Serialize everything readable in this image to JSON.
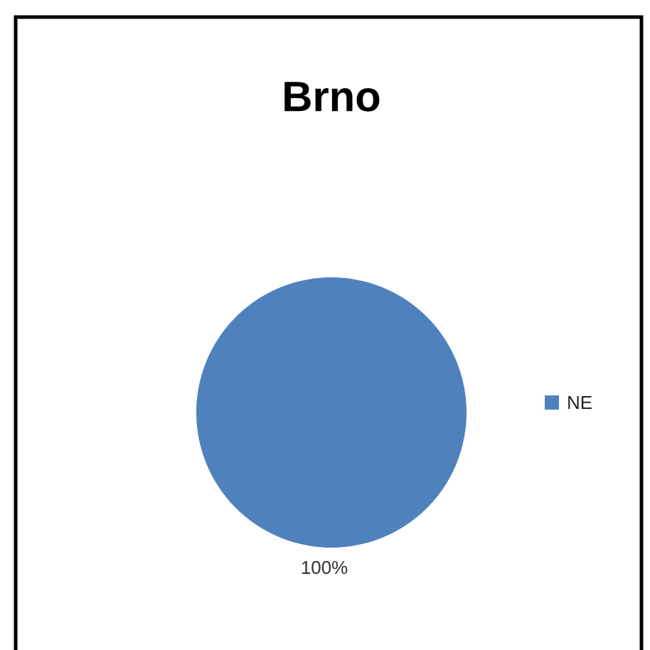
{
  "chart_data": {
    "type": "pie",
    "title": "Brno",
    "categories": [
      "NE"
    ],
    "values": [
      100
    ],
    "colors": [
      "#4f81bd"
    ],
    "value_labels": [
      "100%"
    ],
    "legend": "right"
  }
}
